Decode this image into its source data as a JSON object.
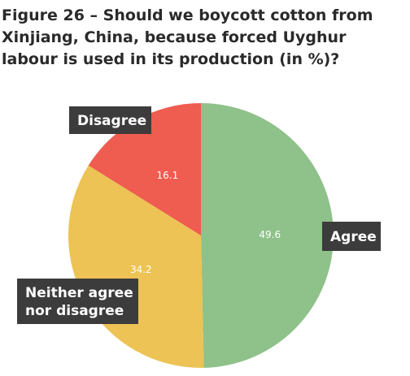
{
  "chart_data": {
    "type": "pie",
    "title": "Figure 26 – Should we boycott cotton from Xinjiang, China, because forced Uyghur labour is used in its production (in %)?",
    "slices": [
      {
        "label": "Agree",
        "label_lines": [
          "Agree"
        ],
        "value": 49.6,
        "value_label": "49.6",
        "color": "#8fc18a"
      },
      {
        "label": "Neither agree nor disagree",
        "label_lines": [
          "Neither agree",
          "nor disagree"
        ],
        "value": 34.2,
        "value_label": "34.2",
        "color": "#ecc354"
      },
      {
        "label": "Disagree",
        "label_lines": [
          "Disagree"
        ],
        "value": 16.1,
        "value_label": "16.1",
        "color": "#ef5c50"
      }
    ],
    "start": "12 o'clock",
    "direction": "clockwise",
    "callout_color": "#3c3c3c"
  }
}
